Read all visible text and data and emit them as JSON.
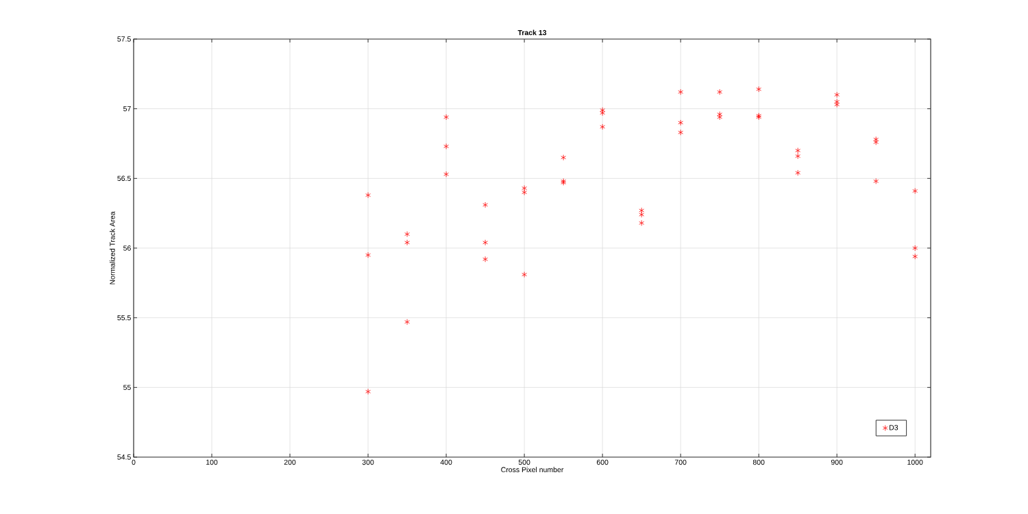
{
  "chart_data": {
    "type": "scatter",
    "title": "Track 13",
    "xlabel": "Cross Pixel number",
    "ylabel": "Normalized Track Area",
    "series": [
      {
        "name": "D3",
        "color": "#ff0000",
        "x": [
          300,
          300,
          300,
          350,
          350,
          350,
          400,
          400,
          400,
          450,
          450,
          450,
          500,
          500,
          500,
          550,
          550,
          550,
          600,
          600,
          600,
          650,
          650,
          650,
          700,
          700,
          700,
          750,
          750,
          750,
          800,
          800,
          800,
          850,
          850,
          850,
          900,
          900,
          900,
          950,
          950,
          950,
          1000,
          1000,
          1000
        ],
        "values": [
          56.38,
          55.95,
          54.97,
          56.1,
          56.04,
          55.47,
          56.94,
          56.73,
          56.53,
          56.31,
          56.04,
          55.92,
          56.43,
          56.4,
          55.81,
          56.65,
          56.48,
          56.47,
          56.99,
          56.97,
          56.87,
          56.27,
          56.24,
          56.18,
          57.12,
          56.9,
          56.83,
          57.12,
          56.96,
          56.94,
          57.14,
          56.95,
          56.94,
          56.7,
          56.66,
          56.54,
          57.1,
          57.05,
          57.03,
          56.78,
          56.76,
          56.48,
          56.41,
          56.0,
          55.94
        ]
      }
    ],
    "xlim": [
      0,
      1020
    ],
    "xticks": [
      0,
      100,
      200,
      300,
      400,
      500,
      600,
      700,
      800,
      900,
      1000
    ],
    "ylim": [
      54.5,
      57.5
    ],
    "yticks": [
      54.5,
      55,
      55.5,
      56,
      56.5,
      57,
      57.5
    ],
    "grid": true,
    "legend": "bottom right",
    "marker": "cross"
  }
}
